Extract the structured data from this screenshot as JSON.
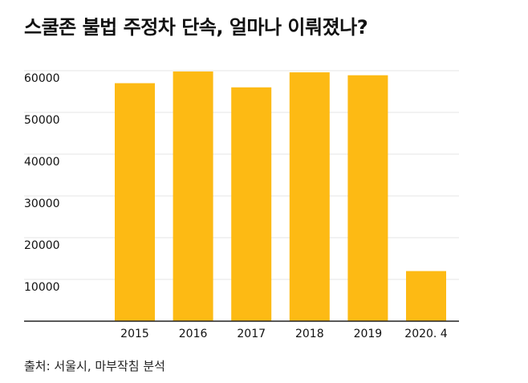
{
  "title": "스쿨존 불법 주정차 단속, 얼마나 이뤄졌나?",
  "source": "출처: 서울시, 마부작침 분석",
  "colors": {
    "bar": "#FDBA14",
    "grid": "#E5E5E5",
    "axis": "#222222"
  },
  "chart_data": {
    "type": "bar",
    "categories": [
      "2015",
      "2016",
      "2017",
      "2018",
      "2019",
      "2020. 4"
    ],
    "values": [
      57000,
      59800,
      56000,
      59600,
      58900,
      12000
    ],
    "ylim": [
      0,
      60000
    ],
    "yticks": [
      10000,
      20000,
      30000,
      40000,
      50000,
      60000
    ],
    "grid": true,
    "xlabel": "",
    "ylabel": ""
  }
}
